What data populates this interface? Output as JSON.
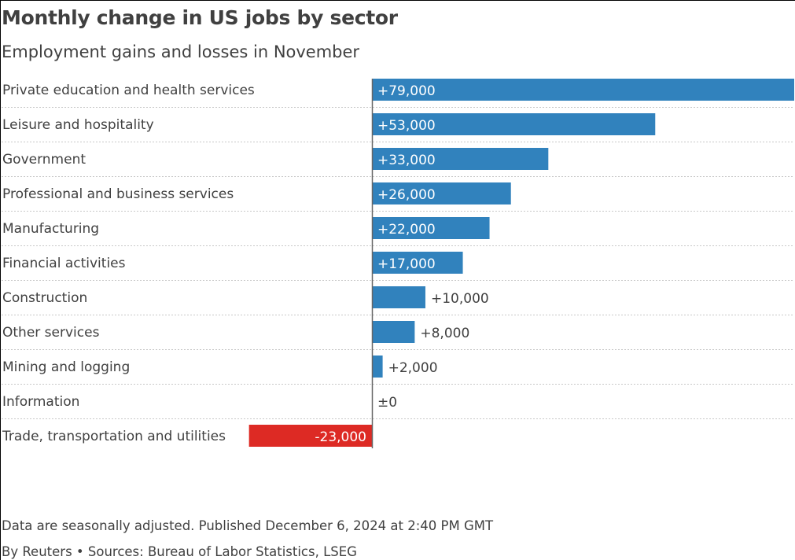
{
  "title": "Monthly change in US jobs by sector",
  "subtitle": "Employment gains and losses in November",
  "chart_data": {
    "type": "bar",
    "orientation": "horizontal",
    "categories": [
      "Private education and health services",
      "Leisure and hospitality",
      "Government",
      "Professional and business services",
      "Manufacturing",
      "Financial activities",
      "Construction",
      "Other services",
      "Mining and logging",
      "Information",
      "Trade, transportation and utilities"
    ],
    "values": [
      79000,
      53000,
      33000,
      26000,
      22000,
      17000,
      10000,
      8000,
      2000,
      0,
      -23000
    ],
    "value_labels": [
      "+79,000",
      "+53,000",
      "+33,000",
      "+26,000",
      "+22,000",
      "+17,000",
      "+10,000",
      "+8,000",
      "+2,000",
      "±0",
      "-23,000"
    ],
    "xlim": [
      -23000,
      79000
    ],
    "grid": false,
    "colors": {
      "positive": "#3182bd",
      "negative": "#dd2a24",
      "axis": "#666666",
      "row_divider": "#c8c8c8"
    }
  },
  "footer": {
    "note": "Data are seasonally adjusted. Published December 6, 2024 at 2:40 PM GMT",
    "credit": "By Reuters • Sources: Bureau of Labor Statistics, LSEG"
  }
}
